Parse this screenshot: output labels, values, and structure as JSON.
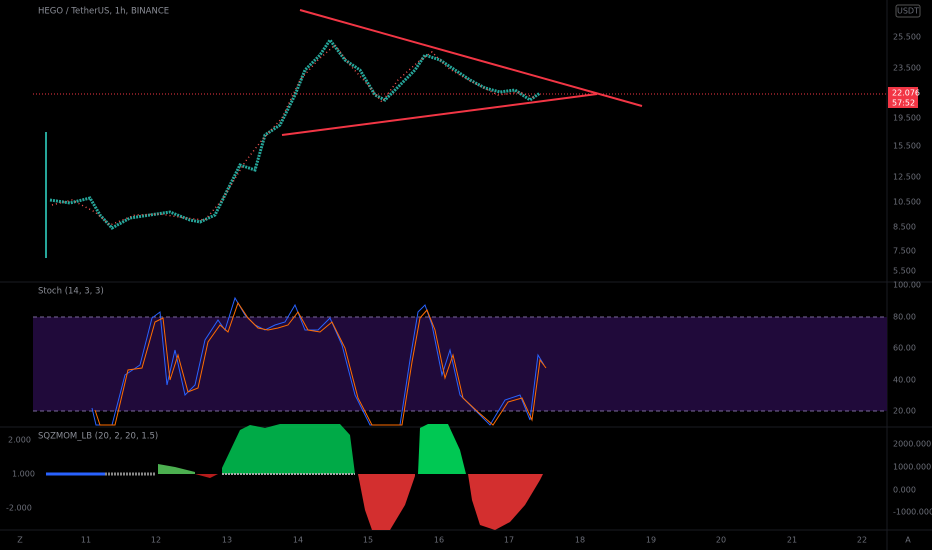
{
  "header": {
    "symbol": "HEGO / TetherUS, 1h, BINANCE",
    "currency": "USDT"
  },
  "price_panel": {
    "axis_labels": [
      "25.500",
      "23.500",
      "19.500",
      "15.500",
      "12.500",
      "10.500",
      "8.500",
      "7.500",
      "5.500"
    ],
    "last_price": "22.076",
    "countdown": "57:52"
  },
  "stoch_panel": {
    "title": "Stoch (14, 3, 3)",
    "axis_labels": [
      "100.00",
      "80.00",
      "60.00",
      "40.00",
      "20.00"
    ]
  },
  "squeeze_panel": {
    "title": "SQZMOM_LB (20, 2, 20, 1.5)",
    "left_labels": [
      "2.000",
      "1.000",
      "-2.000"
    ],
    "right_labels": [
      "2000.000",
      "1000.000",
      "0.000",
      "-1000.000"
    ]
  },
  "time_axis": {
    "labels": [
      "11",
      "12",
      "13",
      "14",
      "15",
      "16",
      "17",
      "18",
      "19",
      "20",
      "21",
      "22"
    ]
  },
  "corner": {
    "left": "Z",
    "right": "A"
  }
}
